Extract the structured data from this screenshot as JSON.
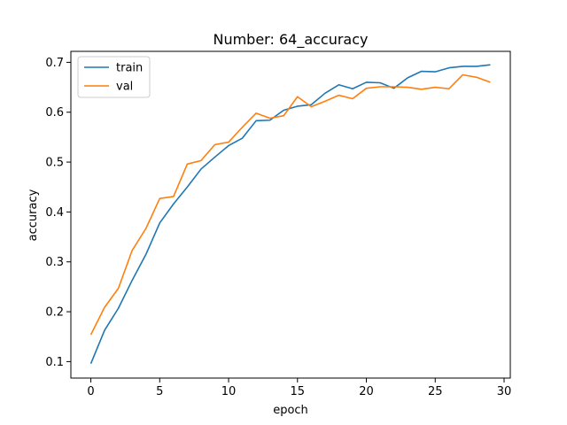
{
  "chart_data": {
    "type": "line",
    "title": "Number: 64_accuracy",
    "xlabel": "epoch",
    "ylabel": "accuracy",
    "xlim": [
      -1.45,
      30.45
    ],
    "ylim": [
      0.067,
      0.722
    ],
    "xticks": [
      0,
      5,
      10,
      15,
      20,
      25,
      30
    ],
    "yticks": [
      0.1,
      0.2,
      0.3,
      0.4,
      0.5,
      0.6,
      0.7
    ],
    "grid": false,
    "legend": "upper-left",
    "x": [
      0,
      1,
      2,
      3,
      4,
      5,
      6,
      7,
      8,
      9,
      10,
      11,
      12,
      13,
      14,
      15,
      16,
      17,
      18,
      19,
      20,
      21,
      22,
      23,
      24,
      25,
      26,
      27,
      28,
      29
    ],
    "series": [
      {
        "name": "train",
        "color": "#1f77b4",
        "values": [
          0.096,
          0.163,
          0.207,
          0.263,
          0.315,
          0.378,
          0.416,
          0.45,
          0.486,
          0.51,
          0.533,
          0.548,
          0.583,
          0.584,
          0.604,
          0.612,
          0.615,
          0.638,
          0.655,
          0.647,
          0.66,
          0.659,
          0.648,
          0.669,
          0.682,
          0.681,
          0.689,
          0.692,
          0.692,
          0.695
        ]
      },
      {
        "name": "val",
        "color": "#ff7f0e",
        "values": [
          0.154,
          0.209,
          0.247,
          0.323,
          0.367,
          0.427,
          0.431,
          0.496,
          0.503,
          0.535,
          0.54,
          0.57,
          0.598,
          0.588,
          0.593,
          0.631,
          0.611,
          0.622,
          0.634,
          0.627,
          0.648,
          0.651,
          0.651,
          0.65,
          0.646,
          0.65,
          0.647,
          0.675,
          0.67,
          0.66
        ]
      }
    ]
  }
}
